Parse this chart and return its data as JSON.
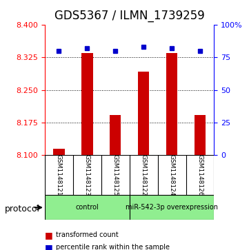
{
  "title": "GDS5367 / ILMN_1739259",
  "samples": [
    "GSM1148121",
    "GSM1148123",
    "GSM1148125",
    "GSM1148122",
    "GSM1148124",
    "GSM1148126"
  ],
  "bar_values": [
    8.115,
    8.335,
    8.192,
    8.292,
    8.335,
    8.192
  ],
  "percentile_values": [
    80,
    82,
    80,
    83,
    82,
    80
  ],
  "ylim_left": [
    8.1,
    8.4
  ],
  "ylim_right": [
    0,
    100
  ],
  "yticks_left": [
    8.1,
    8.175,
    8.25,
    8.325,
    8.4
  ],
  "yticks_right": [
    0,
    25,
    50,
    75,
    100
  ],
  "bar_color": "#cc0000",
  "marker_color": "#0000cc",
  "groups": [
    {
      "label": "control",
      "start": 0,
      "end": 3,
      "color": "#90ee90"
    },
    {
      "label": "miR-542-3p overexpression",
      "start": 3,
      "end": 6,
      "color": "#90ee90"
    }
  ],
  "protocol_label": "protocol",
  "legend_bar_label": "transformed count",
  "legend_marker_label": "percentile rank within the sample",
  "bg_color": "#ffffff",
  "panel_color": "#d3d3d3",
  "grid_color": "#000000",
  "title_fontsize": 12,
  "axis_fontsize": 9,
  "tick_fontsize": 8,
  "bar_width": 0.4
}
